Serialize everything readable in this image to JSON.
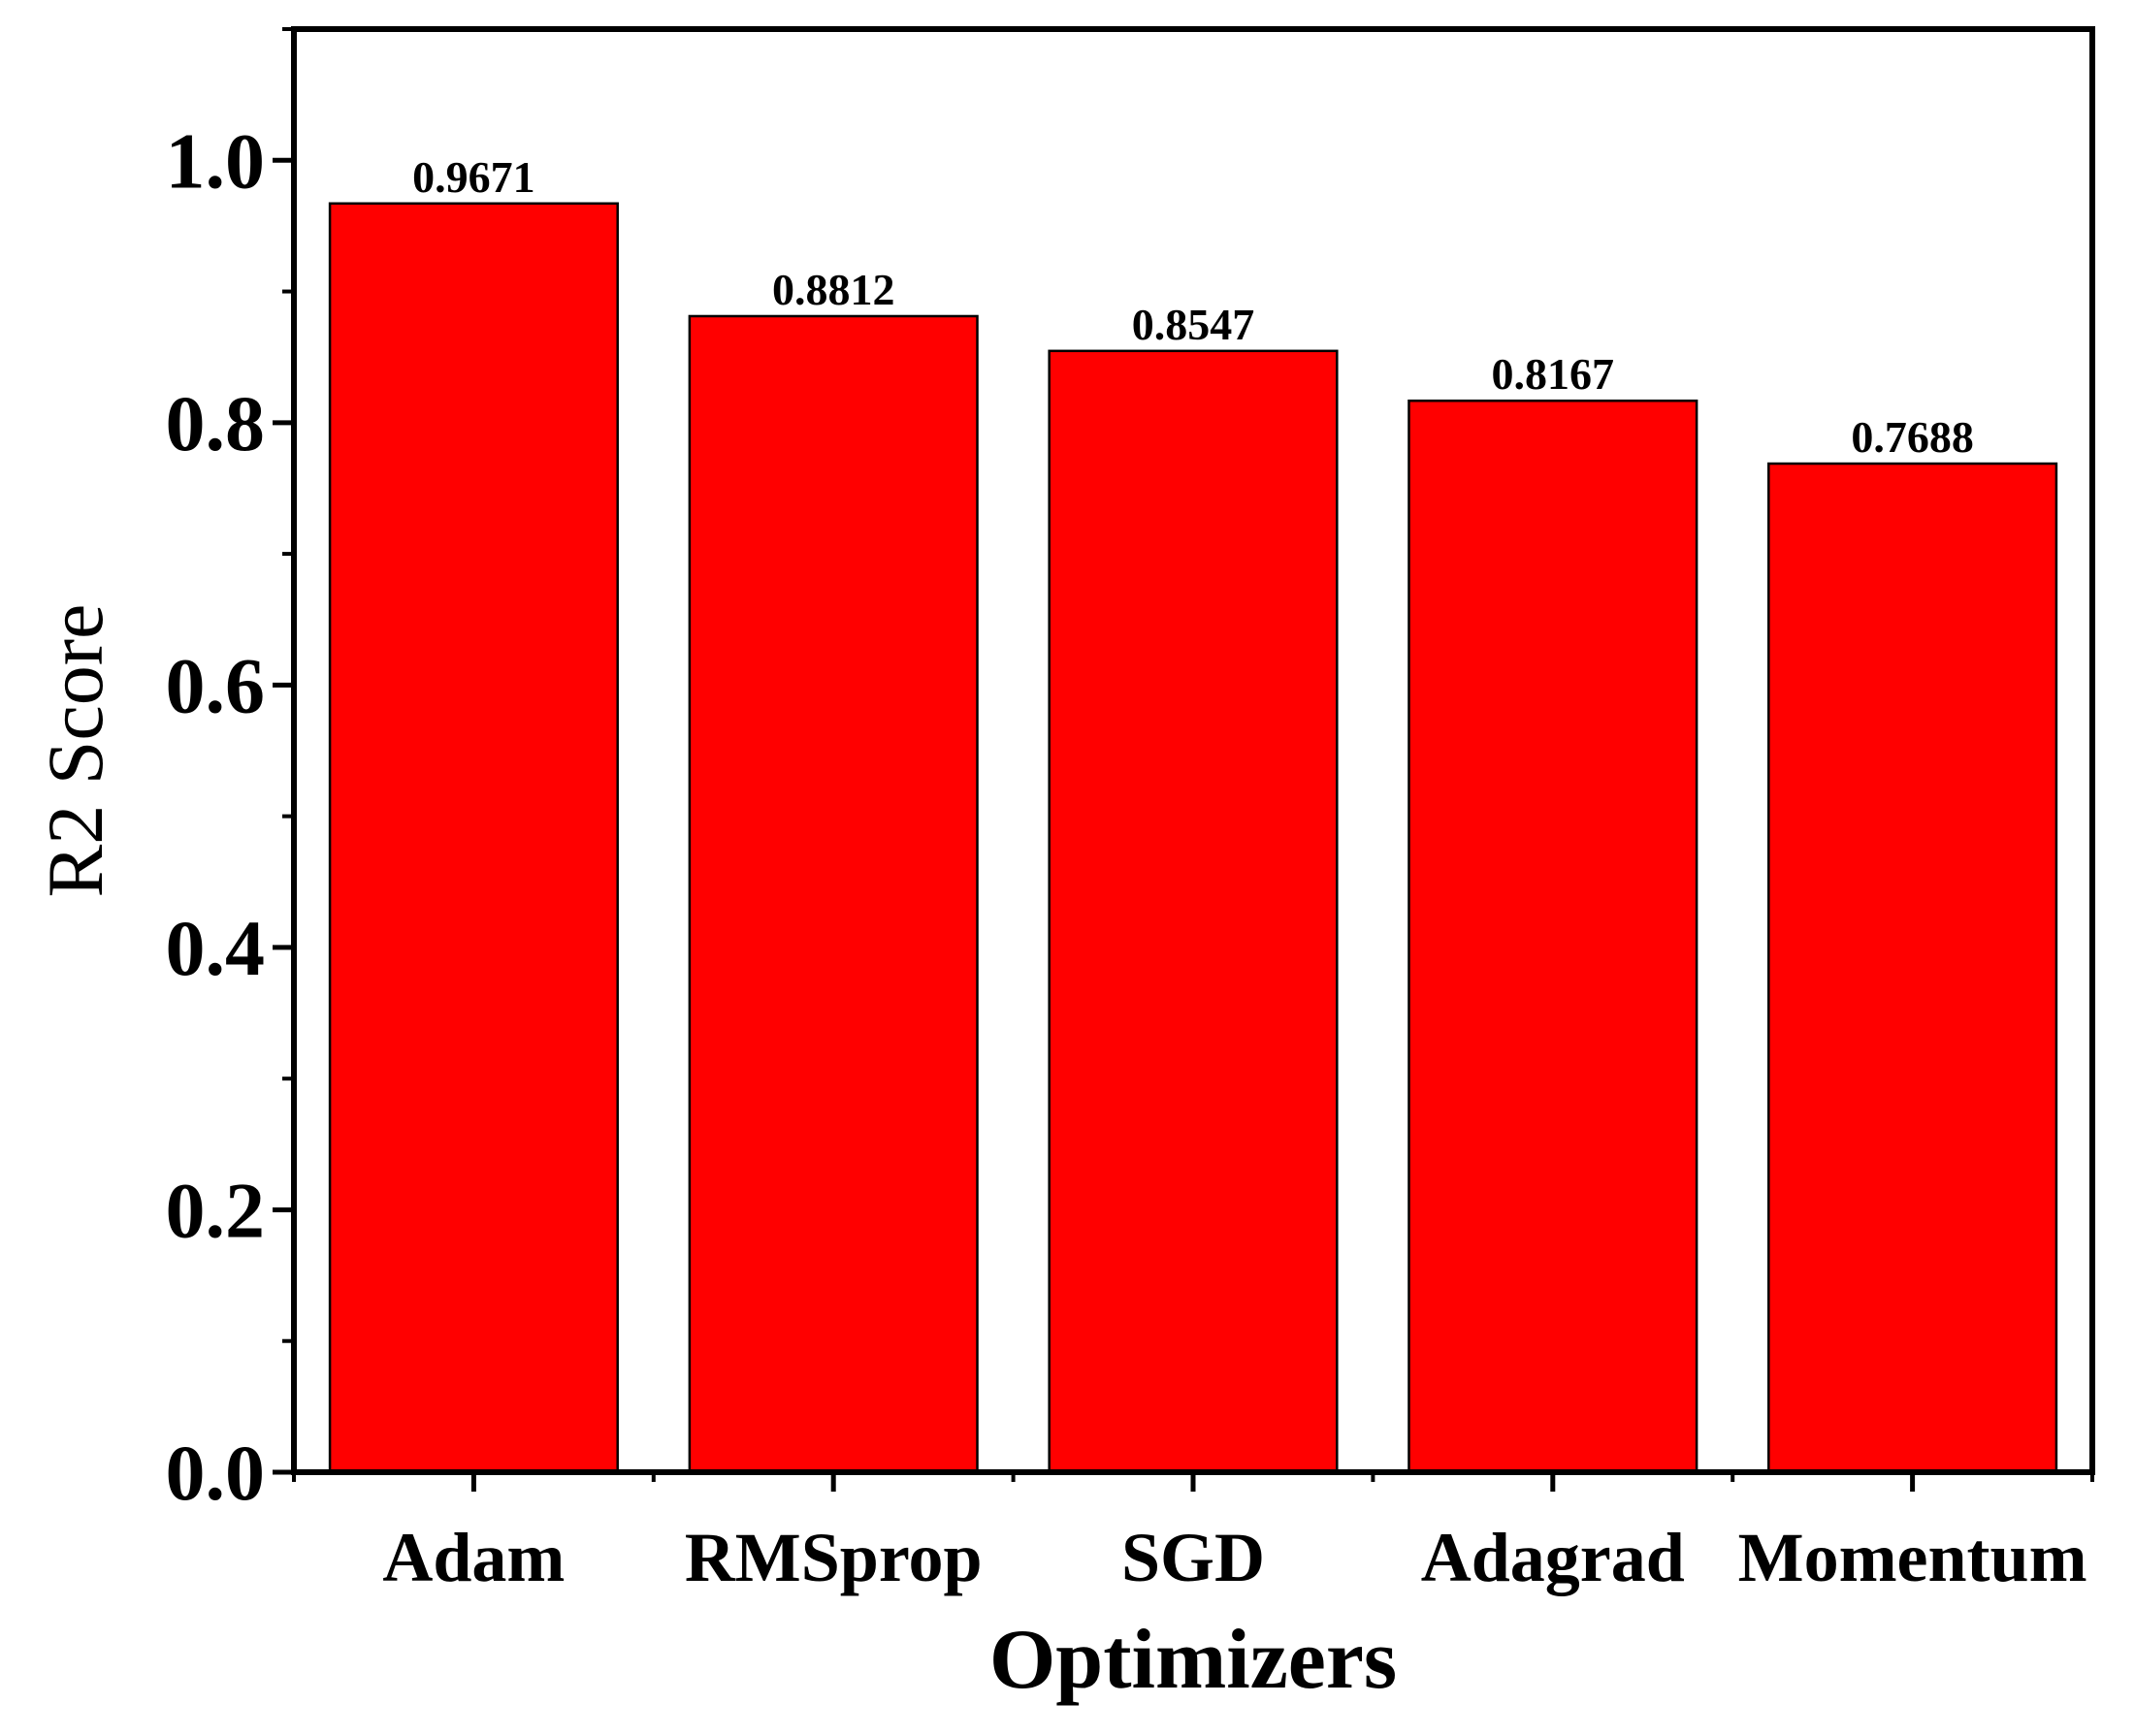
{
  "chart_data": {
    "type": "bar",
    "categories": [
      "Adam",
      "RMSprop",
      "SGD",
      "Adagrad",
      "Momentum"
    ],
    "values": [
      0.9671,
      0.8812,
      0.8547,
      0.8167,
      0.7688
    ],
    "data_labels": [
      "0.9671",
      "0.8812",
      "0.8547",
      "0.8167",
      "0.7688"
    ],
    "xlabel": "Optimizers",
    "ylabel": "R2 Score",
    "ylim": [
      0,
      1.1
    ],
    "yticks": [
      0.0,
      0.2,
      0.4,
      0.6,
      0.8,
      1.0
    ],
    "ytick_labels": [
      "0.0",
      "0.2",
      "0.4",
      "0.6",
      "0.8",
      "1.0"
    ],
    "bar_color": "#ff0000",
    "grid": false,
    "legend": "none"
  }
}
